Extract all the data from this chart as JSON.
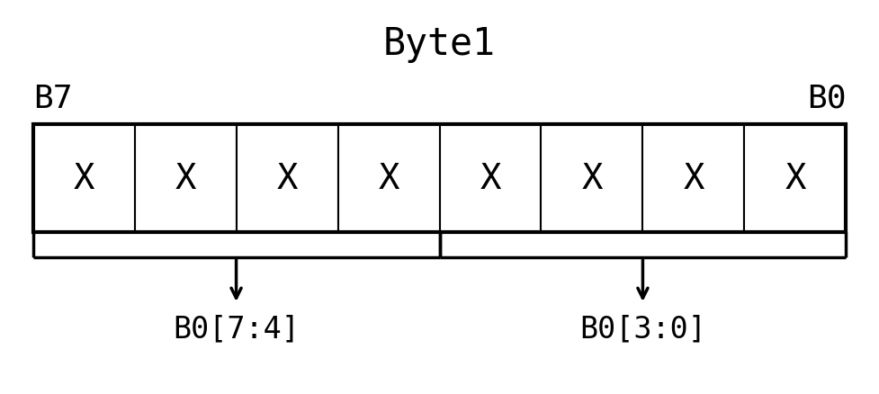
{
  "title": "Byte1",
  "title_fontsize": 30,
  "bit_label_B7": "B7",
  "bit_label_B0": "B0",
  "bit_label_fontsize": 26,
  "cell_label": "X",
  "cell_label_fontsize": 28,
  "num_cells": 8,
  "bracket_left_label": "B0[7:4]",
  "bracket_right_label": "B0[3:0]",
  "bracket_label_fontsize": 24,
  "bg_color": "#ffffff",
  "box_color": "#000000",
  "text_color": "#000000",
  "cell_lw": 1.5,
  "outer_lw": 3.0,
  "bracket_lw": 2.5
}
